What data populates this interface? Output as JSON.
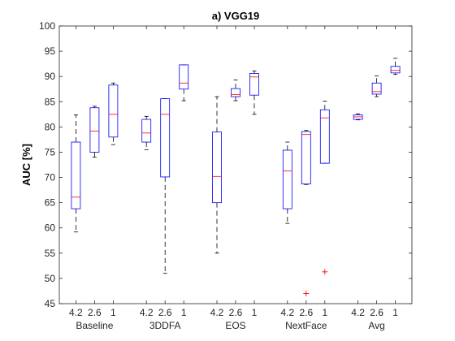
{
  "chart_data": {
    "type": "box",
    "title": "a) VGG19",
    "ylabel": "AUC [%]",
    "ylim": [
      45,
      100
    ],
    "yticks": [
      45,
      50,
      55,
      60,
      65,
      70,
      75,
      80,
      85,
      90,
      95,
      100
    ],
    "grid": false,
    "box_color": "#0000ff",
    "median_color": "#ff0000",
    "whisker_color": "#000000",
    "outlier_color": "#ff0000",
    "groups": [
      {
        "name": "Baseline",
        "boxes": [
          {
            "label": "4.2",
            "whisker_low": 59.2,
            "q1": 63.8,
            "median": 66.1,
            "q3": 77.0,
            "whisker_high": 82.4,
            "outliers": []
          },
          {
            "label": "2.6",
            "whisker_low": 74.0,
            "q1": 75.0,
            "median": 79.2,
            "q3": 83.8,
            "whisker_high": 84.1,
            "outliers": []
          },
          {
            "label": "1",
            "whisker_low": 76.5,
            "q1": 78.0,
            "median": 82.5,
            "q3": 88.3,
            "whisker_high": 88.7,
            "outliers": []
          }
        ]
      },
      {
        "name": "3DDFA",
        "boxes": [
          {
            "label": "4.2",
            "whisker_low": 75.5,
            "q1": 77.0,
            "median": 78.8,
            "q3": 81.5,
            "whisker_high": 82.1,
            "outliers": []
          },
          {
            "label": "2.6",
            "whisker_low": 51.0,
            "q1": 70.1,
            "median": 82.5,
            "q3": 85.6,
            "whisker_high": 85.6,
            "outliers": []
          },
          {
            "label": "1",
            "whisker_low": 85.2,
            "q1": 87.5,
            "median": 88.7,
            "q3": 92.3,
            "whisker_high": 92.3,
            "outliers": []
          }
        ]
      },
      {
        "name": "EOS",
        "boxes": [
          {
            "label": "4.2",
            "whisker_low": 55.0,
            "q1": 65.0,
            "median": 70.2,
            "q3": 79.0,
            "whisker_high": 86.0,
            "outliers": []
          },
          {
            "label": "2.6",
            "whisker_low": 85.2,
            "q1": 86.0,
            "median": 86.4,
            "q3": 87.6,
            "whisker_high": 89.3,
            "outliers": []
          },
          {
            "label": "1",
            "whisker_low": 82.5,
            "q1": 86.3,
            "median": 89.9,
            "q3": 90.6,
            "whisker_high": 91.1,
            "outliers": []
          }
        ]
      },
      {
        "name": "NextFace",
        "boxes": [
          {
            "label": "4.2",
            "whisker_low": 60.9,
            "q1": 63.8,
            "median": 71.3,
            "q3": 75.4,
            "whisker_high": 77.0,
            "outliers": []
          },
          {
            "label": "2.6",
            "whisker_low": 68.6,
            "q1": 68.7,
            "median": 78.5,
            "q3": 79.1,
            "whisker_high": 79.3,
            "outliers": [
              47.0
            ]
          },
          {
            "label": "1",
            "whisker_low": 72.8,
            "q1": 72.8,
            "median": 81.8,
            "q3": 83.4,
            "whisker_high": 85.1,
            "outliers": [
              51.3
            ]
          }
        ]
      },
      {
        "name": "Avg",
        "boxes": [
          {
            "label": "4.2",
            "whisker_low": 81.4,
            "q1": 81.5,
            "median": 82.0,
            "q3": 82.4,
            "whisker_high": 82.6,
            "outliers": []
          },
          {
            "label": "2.6",
            "whisker_low": 86.0,
            "q1": 86.5,
            "median": 87.0,
            "q3": 88.7,
            "whisker_high": 90.1,
            "outliers": []
          },
          {
            "label": "1",
            "whisker_low": 90.4,
            "q1": 90.7,
            "median": 91.2,
            "q3": 92.0,
            "whisker_high": 93.6,
            "outliers": []
          }
        ]
      }
    ]
  }
}
